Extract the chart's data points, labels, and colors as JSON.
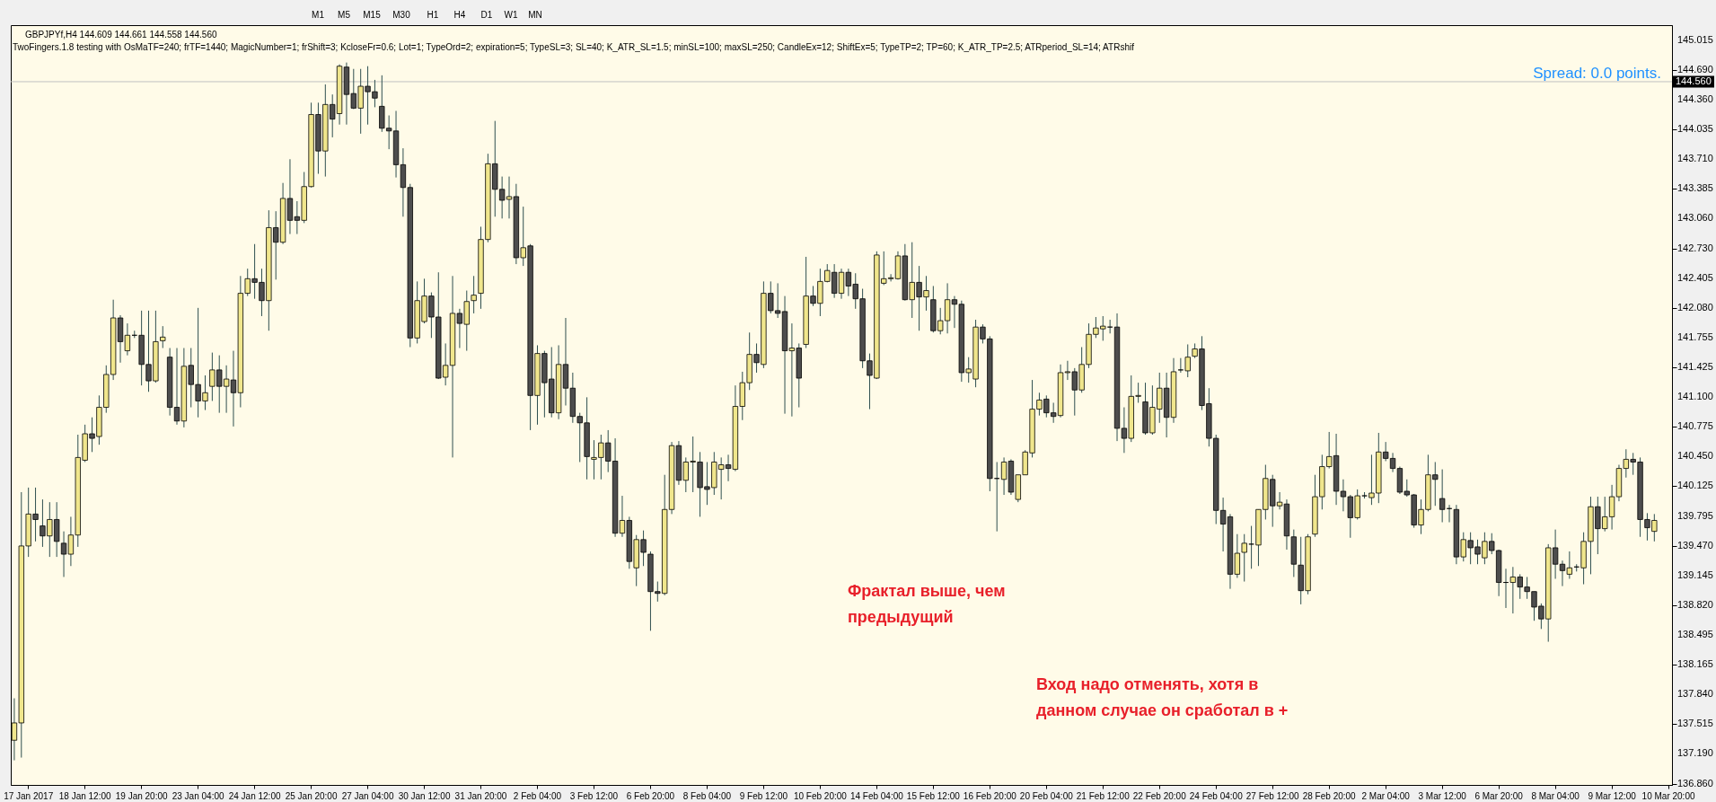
{
  "chart_data": {
    "type": "candlestick",
    "categories": [
      null,
      null,
      "17 Jan 2017",
      null,
      null,
      null,
      null,
      null,
      null,
      null,
      "18 Jan 12:00",
      null,
      null,
      null,
      null,
      null,
      null,
      null,
      "19 Jan 20:00",
      null,
      null,
      null,
      null,
      null,
      null,
      null,
      "23 Jan 04:00",
      null,
      null,
      null,
      null,
      null,
      null,
      null,
      "24 Jan 12:00",
      null,
      null,
      null,
      null,
      null,
      null,
      null,
      "25 Jan 20:00",
      null,
      null,
      null,
      null,
      null,
      null,
      null,
      "27 Jan 04:00",
      null,
      null,
      null,
      null,
      null,
      null,
      null,
      "30 Jan 12:00",
      null,
      null,
      null,
      null,
      null,
      null,
      null,
      "31 Jan 20:00",
      null,
      null,
      null,
      null,
      null,
      null,
      null,
      "2 Feb 04:00",
      null,
      null,
      null,
      null,
      null,
      null,
      null,
      "3 Feb 12:00",
      null,
      null,
      null,
      null,
      null,
      null,
      null,
      "6 Feb 20:00",
      null,
      null,
      null,
      null,
      null,
      null,
      null,
      "8 Feb 04:00",
      null,
      null,
      null,
      null,
      null,
      null,
      null,
      "9 Feb 12:00",
      null,
      null,
      null,
      null,
      null,
      null,
      null,
      "10 Feb 20:00",
      null,
      null,
      null,
      null,
      null,
      null,
      null,
      "14 Feb 04:00",
      null,
      null,
      null,
      null,
      null,
      null,
      null,
      "15 Feb 12:00",
      null,
      null,
      null,
      null,
      null,
      null,
      null,
      "16 Feb 20:00",
      null,
      null,
      null,
      null,
      null,
      null,
      null,
      "20 Feb 04:00",
      null,
      null,
      null,
      null,
      null,
      null,
      null,
      "21 Feb 12:00",
      null,
      null,
      null,
      null,
      null,
      null,
      null,
      "22 Feb 20:00",
      null,
      null,
      null,
      null,
      null,
      null,
      null,
      "24 Feb 04:00",
      null,
      null,
      null,
      null,
      null,
      null,
      null,
      "27 Feb 12:00",
      null,
      null,
      null,
      null,
      null,
      null,
      null,
      "28 Feb 20:00",
      null,
      null,
      null,
      null,
      null,
      null,
      null,
      "2 Mar 04:00",
      null,
      null,
      null,
      null,
      null,
      null,
      null,
      "3 Mar 12:00",
      null,
      null,
      null,
      null,
      null,
      null,
      null,
      "6 Mar 20:00",
      null,
      null,
      null,
      null,
      null,
      null,
      null,
      "8 Mar 04:00",
      null,
      null,
      null,
      null,
      null,
      null,
      null,
      "9 Mar 12:00",
      null,
      null,
      null,
      null,
      null,
      null,
      null,
      "10 Mar 20:00"
    ],
    "ohlc": [
      [
        137.34,
        137.8,
        137.12,
        137.53
      ],
      [
        137.53,
        140.06,
        137.15,
        139.47
      ],
      [
        139.47,
        140.11,
        139.35,
        139.82
      ],
      [
        139.82,
        140.11,
        139.52,
        139.76
      ],
      [
        139.69,
        139.98,
        139.46,
        139.58
      ],
      [
        139.58,
        139.95,
        139.35,
        139.76
      ],
      [
        139.76,
        139.95,
        139.35,
        139.52
      ],
      [
        139.5,
        139.63,
        139.13,
        139.38
      ],
      [
        139.38,
        139.79,
        139.25,
        139.59
      ],
      [
        139.59,
        140.69,
        139.46,
        140.44
      ],
      [
        140.41,
        140.8,
        140.39,
        140.7
      ],
      [
        140.7,
        140.88,
        140.5,
        140.65
      ],
      [
        140.67,
        141.12,
        140.58,
        140.99
      ],
      [
        140.99,
        141.45,
        140.93,
        141.35
      ],
      [
        141.35,
        142.17,
        141.29,
        141.97
      ],
      [
        141.97,
        142.0,
        141.48,
        141.71
      ],
      [
        141.61,
        141.91,
        141.56,
        141.78
      ],
      [
        141.78,
        141.83,
        141.75,
        141.78
      ],
      [
        141.78,
        142.05,
        141.23,
        141.46
      ],
      [
        141.46,
        142.05,
        141.16,
        141.28
      ],
      [
        141.28,
        142.05,
        141.26,
        141.71
      ],
      [
        141.72,
        141.88,
        141.64,
        141.76
      ],
      [
        141.54,
        141.64,
        140.9,
        140.99
      ],
      [
        140.99,
        141.64,
        140.8,
        140.84
      ],
      [
        140.84,
        141.64,
        140.77,
        141.44
      ],
      [
        141.45,
        141.64,
        140.99,
        141.24
      ],
      [
        141.24,
        142.08,
        140.88,
        141.06
      ],
      [
        141.06,
        141.34,
        140.96,
        141.15
      ],
      [
        141.22,
        141.59,
        141.06,
        141.4
      ],
      [
        141.4,
        141.56,
        140.93,
        141.22
      ],
      [
        141.22,
        141.45,
        140.93,
        141.3
      ],
      [
        141.29,
        141.61,
        140.78,
        141.15
      ],
      [
        141.15,
        142.43,
        140.99,
        142.24
      ],
      [
        142.24,
        142.51,
        142.21,
        142.4
      ],
      [
        142.4,
        142.78,
        142.18,
        142.36
      ],
      [
        142.36,
        142.51,
        141.99,
        142.16
      ],
      [
        142.16,
        143.15,
        141.83,
        142.96
      ],
      [
        142.96,
        143.14,
        142.39,
        142.8
      ],
      [
        142.8,
        143.45,
        142.78,
        143.28
      ],
      [
        143.28,
        143.71,
        142.89,
        143.04
      ],
      [
        143.08,
        143.25,
        142.89,
        143.04
      ],
      [
        143.04,
        143.57,
        143.01,
        143.41
      ],
      [
        143.41,
        144.33,
        143.4,
        144.2
      ],
      [
        144.2,
        144.33,
        143.55,
        143.8
      ],
      [
        143.8,
        144.53,
        143.52,
        144.31
      ],
      [
        144.31,
        144.42,
        143.95,
        144.15
      ],
      [
        144.21,
        144.75,
        144.09,
        144.73
      ],
      [
        144.72,
        144.77,
        144.09,
        144.42
      ],
      [
        144.43,
        144.7,
        144.26,
        144.27
      ],
      [
        144.27,
        144.7,
        143.99,
        144.51
      ],
      [
        144.51,
        144.73,
        144.09,
        144.45
      ],
      [
        144.45,
        144.58,
        144.28,
        144.38
      ],
      [
        144.29,
        144.63,
        144.01,
        144.05
      ],
      [
        144.05,
        144.19,
        143.82,
        144.02
      ],
      [
        144.02,
        144.24,
        143.51,
        143.65
      ],
      [
        143.65,
        143.83,
        143.08,
        143.4
      ],
      [
        143.4,
        143.44,
        141.65,
        141.75
      ],
      [
        141.75,
        142.37,
        141.69,
        142.16
      ],
      [
        141.93,
        142.4,
        141.91,
        142.21
      ],
      [
        142.21,
        142.25,
        141.75,
        141.98
      ],
      [
        141.98,
        142.47,
        141.3,
        141.31
      ],
      [
        141.32,
        141.69,
        141.23,
        141.45
      ],
      [
        141.45,
        142.43,
        140.44,
        142.02
      ],
      [
        142.02,
        142.07,
        141.64,
        141.91
      ],
      [
        141.9,
        142.27,
        141.61,
        142.15
      ],
      [
        142.16,
        142.43,
        142.02,
        142.22
      ],
      [
        142.24,
        142.97,
        142.07,
        142.83
      ],
      [
        142.83,
        143.77,
        142.8,
        143.66
      ],
      [
        143.66,
        144.13,
        143.08,
        143.38
      ],
      [
        143.38,
        143.52,
        143.06,
        143.26
      ],
      [
        143.27,
        143.52,
        143.06,
        143.3
      ],
      [
        143.3,
        143.44,
        142.56,
        142.63
      ],
      [
        142.63,
        143.19,
        142.54,
        142.74
      ],
      [
        142.76,
        142.78,
        140.74,
        141.12
      ],
      [
        141.12,
        141.67,
        140.8,
        141.58
      ],
      [
        141.58,
        141.61,
        140.88,
        141.26
      ],
      [
        141.3,
        141.65,
        140.88,
        140.93
      ],
      [
        140.93,
        141.67,
        140.86,
        141.46
      ],
      [
        141.46,
        141.97,
        141.01,
        141.2
      ],
      [
        141.2,
        141.37,
        140.82,
        140.89
      ],
      [
        140.89,
        140.93,
        140.39,
        140.82
      ],
      [
        140.82,
        141.1,
        140.2,
        140.45
      ],
      [
        140.42,
        140.63,
        140.2,
        140.44
      ],
      [
        140.44,
        140.69,
        140.2,
        140.6
      ],
      [
        140.6,
        140.74,
        140.28,
        140.4
      ],
      [
        140.4,
        140.65,
        139.57,
        139.61
      ],
      [
        139.61,
        140.02,
        139.57,
        139.75
      ],
      [
        139.75,
        139.79,
        139.22,
        139.3
      ],
      [
        139.23,
        139.59,
        139.03,
        139.54
      ],
      [
        139.54,
        139.64,
        139.25,
        139.4
      ],
      [
        139.38,
        139.41,
        138.54,
        138.97
      ],
      [
        138.97,
        139.08,
        138.86,
        138.95
      ],
      [
        138.95,
        140.25,
        138.93,
        139.87
      ],
      [
        139.87,
        140.61,
        139.82,
        140.57
      ],
      [
        140.57,
        140.62,
        140.14,
        140.19
      ],
      [
        140.19,
        140.44,
        140.06,
        140.39
      ],
      [
        140.39,
        140.67,
        140.06,
        140.4
      ],
      [
        140.39,
        140.5,
        139.79,
        140.11
      ],
      [
        140.12,
        140.39,
        139.92,
        140.09
      ],
      [
        140.11,
        140.5,
        140.03,
        140.39
      ],
      [
        140.31,
        140.44,
        139.98,
        140.36
      ],
      [
        140.36,
        140.47,
        140.18,
        140.32
      ],
      [
        140.31,
        141.23,
        140.29,
        141.0
      ],
      [
        141.0,
        141.38,
        140.85,
        141.26
      ],
      [
        141.26,
        141.81,
        141.18,
        141.57
      ],
      [
        141.57,
        141.69,
        141.37,
        141.48
      ],
      [
        141.46,
        142.37,
        141.42,
        142.24
      ],
      [
        142.24,
        142.37,
        142.02,
        142.05
      ],
      [
        142.05,
        142.35,
        141.97,
        142.02
      ],
      [
        142.04,
        142.21,
        140.92,
        141.61
      ],
      [
        141.61,
        141.91,
        140.89,
        141.64
      ],
      [
        141.64,
        141.69,
        140.99,
        141.31
      ],
      [
        141.68,
        142.64,
        141.64,
        142.21
      ],
      [
        142.21,
        142.32,
        142.1,
        142.13
      ],
      [
        142.13,
        142.51,
        141.99,
        142.37
      ],
      [
        142.37,
        142.56,
        142.36,
        142.49
      ],
      [
        142.47,
        142.56,
        142.19,
        142.24
      ],
      [
        142.24,
        142.51,
        142.18,
        142.47
      ],
      [
        142.47,
        142.51,
        142.21,
        142.32
      ],
      [
        142.34,
        142.46,
        142.07,
        142.18
      ],
      [
        142.18,
        142.29,
        141.42,
        141.5
      ],
      [
        141.5,
        141.58,
        140.97,
        141.34
      ],
      [
        141.31,
        142.7,
        141.3,
        142.66
      ],
      [
        142.35,
        142.7,
        142.33,
        142.4
      ],
      [
        142.4,
        142.45,
        142.37,
        142.41
      ],
      [
        142.4,
        142.7,
        142.39,
        142.65
      ],
      [
        142.65,
        142.78,
        142.16,
        142.17
      ],
      [
        142.17,
        142.8,
        141.97,
        142.36
      ],
      [
        142.36,
        142.54,
        141.83,
        142.2
      ],
      [
        142.2,
        142.43,
        142.05,
        142.27
      ],
      [
        142.17,
        142.32,
        141.81,
        141.83
      ],
      [
        141.83,
        142.08,
        141.79,
        141.94
      ],
      [
        141.94,
        142.35,
        141.8,
        142.17
      ],
      [
        142.17,
        142.21,
        141.86,
        142.12
      ],
      [
        142.12,
        142.16,
        141.27,
        141.37
      ],
      [
        141.37,
        141.54,
        141.26,
        141.41
      ],
      [
        141.3,
        141.95,
        141.21,
        141.87
      ],
      [
        141.87,
        141.9,
        141.69,
        141.74
      ],
      [
        141.74,
        141.77,
        140.07,
        140.21
      ],
      [
        140.21,
        140.39,
        139.63,
        140.21
      ],
      [
        140.2,
        140.44,
        140.03,
        140.39
      ],
      [
        140.4,
        140.42,
        140.03,
        140.06
      ],
      [
        139.98,
        140.25,
        139.95,
        140.25
      ],
      [
        140.25,
        140.52,
        140.25,
        140.5
      ],
      [
        140.49,
        141.29,
        140.44,
        140.97
      ],
      [
        140.97,
        141.15,
        140.9,
        141.07
      ],
      [
        141.08,
        141.12,
        140.88,
        140.93
      ],
      [
        140.93,
        141.04,
        140.82,
        140.89
      ],
      [
        140.9,
        141.46,
        140.88,
        141.37
      ],
      [
        141.37,
        141.5,
        141.29,
        141.38
      ],
      [
        141.38,
        141.42,
        140.9,
        141.18
      ],
      [
        141.18,
        141.65,
        141.15,
        141.46
      ],
      [
        141.46,
        141.91,
        141.42,
        141.79
      ],
      [
        141.79,
        141.98,
        141.75,
        141.86
      ],
      [
        141.85,
        141.99,
        141.72,
        141.88
      ],
      [
        141.87,
        141.95,
        141.8,
        141.87
      ],
      [
        141.87,
        142.02,
        140.62,
        140.76
      ],
      [
        140.76,
        140.99,
        140.49,
        140.65
      ],
      [
        140.65,
        141.34,
        140.61,
        141.11
      ],
      [
        141.11,
        141.26,
        141.04,
        141.12
      ],
      [
        141.05,
        141.26,
        140.69,
        140.71
      ],
      [
        140.71,
        141.23,
        140.69,
        140.99
      ],
      [
        140.97,
        141.37,
        140.82,
        141.2
      ],
      [
        141.2,
        141.37,
        140.66,
        140.88
      ],
      [
        140.88,
        141.53,
        140.82,
        141.38
      ],
      [
        141.4,
        141.53,
        141.37,
        141.4
      ],
      [
        141.39,
        141.68,
        141.32,
        141.54
      ],
      [
        141.55,
        141.69,
        141.53,
        141.63
      ],
      [
        141.63,
        141.77,
        140.96,
        141.01
      ],
      [
        141.03,
        141.2,
        140.56,
        140.65
      ],
      [
        140.65,
        140.69,
        139.71,
        139.86
      ],
      [
        139.86,
        140.0,
        139.41,
        139.71
      ],
      [
        139.79,
        139.82,
        139.0,
        139.16
      ],
      [
        139.16,
        139.6,
        139.12,
        139.39
      ],
      [
        139.4,
        139.6,
        139.08,
        139.5
      ],
      [
        139.49,
        139.69,
        139.22,
        139.49
      ],
      [
        139.48,
        139.87,
        139.25,
        139.87
      ],
      [
        139.87,
        140.36,
        139.76,
        140.21
      ],
      [
        140.2,
        140.25,
        139.68,
        139.91
      ],
      [
        139.91,
        140.06,
        139.87,
        139.95
      ],
      [
        139.93,
        139.98,
        139.43,
        139.58
      ],
      [
        139.57,
        139.65,
        139.13,
        139.27
      ],
      [
        139.26,
        139.57,
        138.83,
        138.98
      ],
      [
        138.98,
        139.6,
        138.94,
        139.57
      ],
      [
        139.6,
        140.25,
        139.57,
        140.01
      ],
      [
        140.01,
        140.47,
        139.87,
        140.34
      ],
      [
        140.34,
        140.72,
        140.32,
        140.45
      ],
      [
        140.46,
        140.7,
        139.92,
        140.07
      ],
      [
        140.07,
        140.2,
        139.85,
        140.01
      ],
      [
        140.01,
        140.03,
        139.56,
        139.78
      ],
      [
        139.78,
        140.09,
        139.76,
        140.02
      ],
      [
        140.02,
        140.06,
        139.99,
        140.02
      ],
      [
        140.0,
        140.47,
        139.92,
        140.05
      ],
      [
        140.05,
        140.71,
        139.94,
        140.5
      ],
      [
        140.5,
        140.61,
        140.4,
        140.43
      ],
      [
        140.43,
        140.49,
        140.28,
        140.32
      ],
      [
        140.32,
        140.34,
        140.04,
        140.06
      ],
      [
        140.07,
        140.2,
        140.01,
        140.03
      ],
      [
        140.03,
        140.04,
        139.67,
        139.7
      ],
      [
        139.7,
        139.98,
        139.6,
        139.87
      ],
      [
        139.87,
        140.47,
        139.85,
        140.25
      ],
      [
        140.25,
        140.39,
        139.91,
        140.2
      ],
      [
        139.99,
        140.31,
        139.73,
        139.87
      ],
      [
        139.88,
        139.92,
        139.73,
        139.88
      ],
      [
        139.87,
        139.92,
        139.27,
        139.35
      ],
      [
        139.35,
        139.62,
        139.3,
        139.54
      ],
      [
        139.53,
        139.62,
        139.27,
        139.45
      ],
      [
        139.46,
        139.54,
        139.27,
        139.38
      ],
      [
        139.34,
        139.62,
        139.27,
        139.52
      ],
      [
        139.52,
        139.61,
        139.38,
        139.42
      ],
      [
        139.42,
        139.43,
        138.92,
        139.07
      ],
      [
        139.07,
        139.22,
        138.79,
        139.07
      ],
      [
        139.07,
        139.24,
        138.73,
        139.13
      ],
      [
        139.13,
        139.16,
        138.89,
        139.02
      ],
      [
        139.02,
        139.13,
        138.89,
        138.97
      ],
      [
        138.97,
        138.97,
        138.65,
        138.8
      ],
      [
        138.81,
        138.84,
        138.56,
        138.67
      ],
      [
        138.67,
        139.49,
        138.42,
        139.45
      ],
      [
        139.45,
        139.65,
        139.11,
        139.27
      ],
      [
        139.27,
        139.31,
        139.03,
        139.2
      ],
      [
        139.16,
        139.41,
        139.11,
        139.23
      ],
      [
        139.24,
        139.27,
        139.19,
        139.24
      ],
      [
        139.23,
        139.62,
        139.05,
        139.52
      ],
      [
        139.52,
        140.01,
        139.16,
        139.9
      ],
      [
        139.9,
        140.01,
        139.38,
        139.66
      ],
      [
        139.66,
        140.01,
        139.63,
        139.79
      ],
      [
        139.79,
        140.14,
        139.65,
        140.01
      ],
      [
        140.01,
        140.36,
        139.96,
        140.32
      ],
      [
        140.32,
        140.53,
        140.22,
        140.42
      ],
      [
        140.42,
        140.49,
        140.25,
        140.39
      ],
      [
        140.39,
        140.44,
        139.57,
        139.76
      ],
      [
        139.76,
        139.83,
        139.53,
        139.67
      ],
      [
        139.63,
        139.82,
        139.52,
        139.75
      ],
      null,
      null
    ],
    "ylim": [
      136.85,
      145.18
    ],
    "yticks": [
      {
        "value": 136.86,
        "label": "136.860"
      },
      {
        "value": 137.19,
        "label": "137.190"
      },
      137.515,
      {
        "value": 137.84,
        "label": "137.840"
      },
      138.165,
      138.495,
      {
        "value": 138.82,
        "label": "138.820"
      },
      139.145,
      {
        "value": 139.47,
        "label": "139.470"
      },
      139.795,
      140.125,
      {
        "value": 140.45,
        "label": "140.450"
      },
      140.775,
      {
        "value": 141.1,
        "label": "141.100"
      },
      141.425,
      141.755,
      {
        "value": 142.08,
        "label": "142.080"
      },
      142.405,
      {
        "value": 142.73,
        "label": "142.730"
      },
      {
        "value": 143.06,
        "label": "143.060"
      },
      143.385,
      {
        "value": 143.71,
        "label": "143.710"
      },
      144.035,
      {
        "value": 144.36,
        "label": "144.360"
      },
      {
        "value": 144.69,
        "label": "144.690"
      },
      145.015
    ],
    "ref_lines": [
      {
        "axis": "y",
        "value": 144.56,
        "label": "144.560",
        "color": "#c0c0c0"
      }
    ],
    "annotations": [
      "GBPJPYf,H4  144.609 144.661 144.558 144.560",
      "TwoFingers.1.8 testing with OsMaTF=240; frTF=1440; MagicNumber=1; frShift=3; KcloseFr=0.6; Lot=1; TypeOrd=2; expiration=5; TypeSL=3; SL=40; K_ATR_SL=1.5; minSL=100; maxSL=250; CandleEx=12; ShiftEx=5; TypeTP=2; TP=60; K_ATR_TP=2.5; ATRperiod_SL=14; ATRshif",
      "Spread: 0.0 points.",
      "Фрактал выше, чем\nпредыдущий",
      "Вход надо отменять, хотя в\nданном случае он сработал в +",
      "M1",
      "M5",
      "M15",
      "M30",
      "H1",
      "H4",
      "D1",
      "W1",
      "MN"
    ],
    "grid": false
  }
}
